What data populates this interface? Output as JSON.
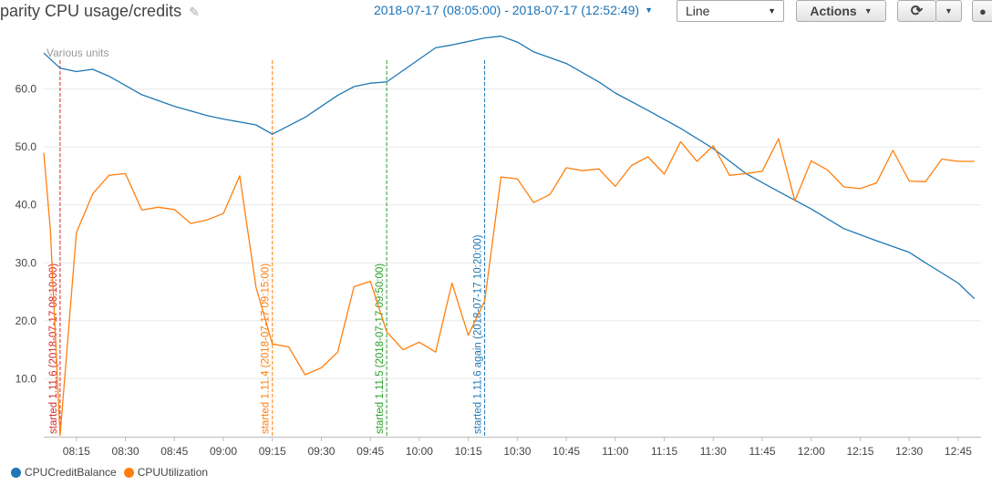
{
  "header": {
    "title": "parity CPU usage/credits",
    "edit_icon": "pencil-icon",
    "time_range": "2018-07-17 (08:05:00) - 2018-07-17 (12:52:49)",
    "view_select": "Line",
    "actions_label": "Actions",
    "refresh_icon": "refresh-icon"
  },
  "chart_data": {
    "type": "line",
    "unit_label": "Various units",
    "xlim": [
      "08:05",
      "12:52"
    ],
    "ylim": [
      0,
      70
    ],
    "y_ticks": [
      10.0,
      20.0,
      30.0,
      40.0,
      50.0,
      60.0
    ],
    "x_ticks": [
      "08:15",
      "08:30",
      "08:45",
      "09:00",
      "09:15",
      "09:30",
      "09:45",
      "10:00",
      "10:15",
      "10:30",
      "10:45",
      "11:00",
      "11:15",
      "11:30",
      "11:45",
      "12:00",
      "12:15",
      "12:30",
      "12:45"
    ],
    "grid": "horizontal",
    "legend_position": "bottom-left",
    "series": [
      {
        "name": "CPUCreditBalance",
        "color": "#1f77b4",
        "x": [
          "08:05",
          "08:10",
          "08:15",
          "08:20",
          "08:25",
          "08:35",
          "08:45",
          "08:55",
          "09:00",
          "09:10",
          "09:15",
          "09:25",
          "09:35",
          "09:40",
          "09:45",
          "09:50",
          "10:05",
          "10:10",
          "10:20",
          "10:25",
          "10:30",
          "10:35",
          "10:45",
          "10:55",
          "11:00",
          "11:10",
          "11:20",
          "11:30",
          "11:40",
          "11:50",
          "12:00",
          "12:10",
          "12:20",
          "12:30",
          "12:35",
          "12:45",
          "12:50"
        ],
        "values": [
          66.2,
          63.6,
          63.0,
          63.4,
          62.2,
          59.0,
          57.0,
          55.4,
          54.8,
          53.8,
          52.2,
          55.1,
          58.9,
          60.4,
          61.0,
          61.2,
          67.1,
          67.6,
          68.8,
          69.1,
          68.1,
          66.4,
          64.4,
          61.2,
          59.3,
          56.3,
          53.2,
          49.7,
          45.4,
          42.3,
          39.3,
          35.9,
          33.8,
          31.8,
          30.0,
          26.5,
          23.8
        ]
      },
      {
        "name": "CPUUtilization",
        "color": "#ff7f0e",
        "x": [
          "08:05",
          "08:07",
          "08:10",
          "08:15",
          "08:20",
          "08:25",
          "08:30",
          "08:35",
          "08:40",
          "08:45",
          "08:50",
          "08:55",
          "09:00",
          "09:05",
          "09:10",
          "09:15",
          "09:20",
          "09:25",
          "09:30",
          "09:35",
          "09:40",
          "09:45",
          "09:50",
          "09:55",
          "10:00",
          "10:05",
          "10:10",
          "10:15",
          "10:20",
          "10:25",
          "10:30",
          "10:35",
          "10:40",
          "10:45",
          "10:50",
          "10:55",
          "11:00",
          "11:05",
          "11:10",
          "11:15",
          "11:20",
          "11:25",
          "11:30",
          "11:35",
          "11:40",
          "11:45",
          "11:50",
          "11:55",
          "12:00",
          "12:05",
          "12:10",
          "12:15",
          "12:20",
          "12:25",
          "12:30",
          "12:35",
          "12:40",
          "12:45",
          "12:50"
        ],
        "values": [
          49.0,
          35.8,
          0.2,
          35.2,
          41.9,
          45.1,
          45.4,
          39.1,
          39.6,
          39.2,
          36.8,
          37.4,
          38.5,
          45.0,
          25.8,
          16.0,
          15.5,
          10.7,
          11.9,
          14.6,
          25.9,
          26.8,
          18.1,
          15.0,
          16.3,
          14.6,
          26.5,
          17.5,
          23.4,
          44.8,
          44.5,
          40.4,
          41.8,
          46.4,
          45.9,
          46.2,
          43.2,
          46.8,
          48.3,
          45.3,
          50.9,
          47.5,
          50.2,
          45.1,
          45.4,
          45.8,
          51.4,
          40.7,
          47.6,
          46.0,
          43.1,
          42.8,
          43.8,
          49.4,
          44.1,
          44.0,
          47.9,
          47.5,
          47.5
        ]
      }
    ],
    "annotations": [
      {
        "x": "08:10",
        "label": "started 1.11.6 (2018-07-17 08:10:00)",
        "color": "#d62728"
      },
      {
        "x": "09:15",
        "label": "started 1.11.4 (2018-07-17 09:15:00)",
        "color": "#ff7f0e"
      },
      {
        "x": "09:50",
        "label": "started 1.11.5 (2018-07-17 09:50:00)",
        "color": "#2ca02c"
      },
      {
        "x": "10:20",
        "label": "started 1.11.6 again (2018-07-17 10:20:00)",
        "color": "#1f77b4"
      }
    ]
  }
}
